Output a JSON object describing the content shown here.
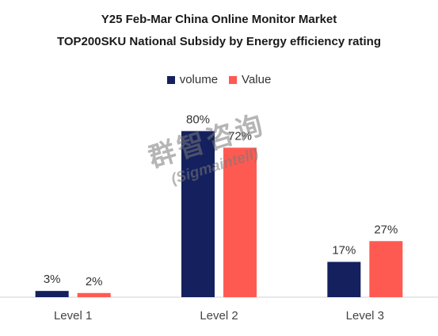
{
  "chart_data": {
    "type": "bar",
    "title": "Y25 Feb-Mar China Online Monitor Market",
    "subtitle": "TOP200SKU National Subsidy by Energy efficiency rating",
    "categories": [
      "Level 1",
      "Level 2",
      "Level 3"
    ],
    "series": [
      {
        "name": "volume",
        "values": [
          3,
          80,
          17
        ],
        "labels": [
          "3%",
          "80%",
          "17%"
        ],
        "color": "#14215e"
      },
      {
        "name": "Value",
        "values": [
          2,
          72,
          27
        ],
        "labels": [
          "2%",
          "72%",
          "27%"
        ],
        "color": "#ff5a52"
      }
    ],
    "ylim": [
      0,
      100
    ],
    "grid": false,
    "legend": "top-center"
  },
  "watermark": {
    "line1": "群智咨询",
    "line2": "(Sigmaintell)"
  }
}
